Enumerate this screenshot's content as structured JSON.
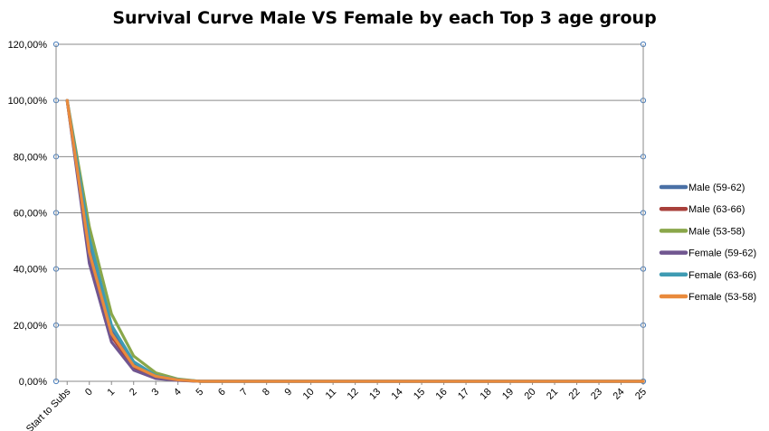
{
  "chart_data": {
    "type": "line",
    "title": "Survival Curve Male VS Female by each Top 3 age group",
    "xlabel": "",
    "ylabel": "",
    "categories": [
      "Start to Subs",
      "0",
      "1",
      "2",
      "3",
      "4",
      "5",
      "6",
      "7",
      "8",
      "9",
      "10",
      "11",
      "12",
      "13",
      "14",
      "15",
      "16",
      "17",
      "18",
      "19",
      "20",
      "21",
      "22",
      "23",
      "24",
      "25"
    ],
    "yticks": [
      "0,00%",
      "20,00%",
      "40,00%",
      "60,00%",
      "80,00%",
      "100,00%",
      "120,00%"
    ],
    "ylim": [
      0,
      1.2
    ],
    "grid": true,
    "legend_position": "right",
    "series": [
      {
        "name": "Male (59-62)",
        "color": "#4a71a6",
        "values": [
          1.0,
          0.48,
          0.18,
          0.06,
          0.02,
          0.005,
          0,
          0,
          0,
          0,
          0,
          0,
          0,
          0,
          0,
          0,
          0,
          0,
          0,
          0,
          0,
          0,
          0,
          0,
          0,
          0,
          0
        ]
      },
      {
        "name": "Male (63-66)",
        "color": "#a8403b",
        "values": [
          1.0,
          0.44,
          0.16,
          0.05,
          0.015,
          0.004,
          0,
          0,
          0,
          0,
          0,
          0,
          0,
          0,
          0,
          0,
          0,
          0,
          0,
          0,
          0,
          0,
          0,
          0,
          0,
          0,
          0
        ]
      },
      {
        "name": "Male (53-58)",
        "color": "#8aa74a",
        "values": [
          1.0,
          0.55,
          0.24,
          0.09,
          0.03,
          0.008,
          0,
          0,
          0,
          0,
          0,
          0,
          0,
          0,
          0,
          0,
          0,
          0,
          0,
          0,
          0,
          0,
          0,
          0,
          0,
          0,
          0
        ]
      },
      {
        "name": "Female (59-62)",
        "color": "#705690",
        "values": [
          1.0,
          0.42,
          0.14,
          0.04,
          0.01,
          0.003,
          0,
          0,
          0,
          0,
          0,
          0,
          0,
          0,
          0,
          0,
          0,
          0,
          0,
          0,
          0,
          0,
          0,
          0,
          0,
          0,
          0
        ]
      },
      {
        "name": "Female (63-66)",
        "color": "#3f9bb3",
        "values": [
          1.0,
          0.51,
          0.2,
          0.07,
          0.02,
          0.006,
          0,
          0,
          0,
          0,
          0,
          0,
          0,
          0,
          0,
          0,
          0,
          0,
          0,
          0,
          0,
          0,
          0,
          0,
          0,
          0,
          0
        ]
      },
      {
        "name": "Female (53-58)",
        "color": "#e98a3c",
        "values": [
          1.0,
          0.46,
          0.17,
          0.055,
          0.018,
          0.005,
          0,
          0,
          0,
          0,
          0,
          0,
          0,
          0,
          0,
          0,
          0,
          0,
          0,
          0,
          0,
          0,
          0,
          0,
          0,
          0,
          0
        ]
      }
    ]
  }
}
